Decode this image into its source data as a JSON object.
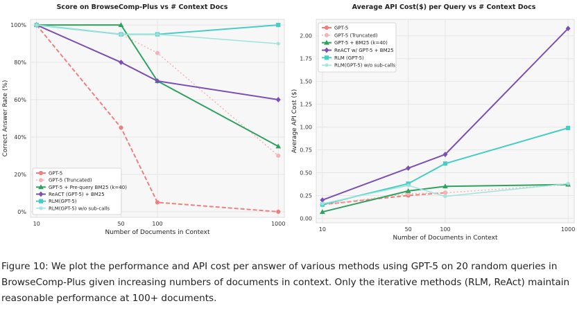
{
  "chart_data": [
    {
      "type": "line",
      "title": "Score on BrowseComp-Plus vs # Context Docs",
      "xlabel": "Number of Documents in Context",
      "ylabel": "Correct Answer Rate (%)",
      "x": [
        10,
        50,
        100,
        1000
      ],
      "xticks": [
        "10",
        "50",
        "100",
        "1000"
      ],
      "ylim": [
        -3,
        103
      ],
      "yticks": [
        0,
        20,
        40,
        60,
        80,
        100
      ],
      "ytick_labels": [
        "0%",
        "20%",
        "40%",
        "60%",
        "80%",
        "100%"
      ],
      "legend_position": "lower-left",
      "series": [
        {
          "name": "GPT-5",
          "values": [
            100,
            45,
            5,
            0
          ],
          "color": "#f08080",
          "dash": "dashed",
          "marker": "circle",
          "width": 2
        },
        {
          "name": "GPT-5 (Truncated)",
          "values": [
            100,
            95,
            85,
            30
          ],
          "color": "#f4b4b4",
          "dash": "dotted",
          "marker": "circle",
          "width": 1.5
        },
        {
          "name": "GPT-5 + Pre-query BM25 (k=40)",
          "values": [
            100,
            100,
            70,
            35
          ],
          "color": "#2ca25f",
          "dash": "solid",
          "marker": "triangle",
          "width": 2
        },
        {
          "name": "ReACT (GPT-5) + BM25",
          "values": [
            100,
            80,
            70,
            60
          ],
          "color": "#7b4fb3",
          "dash": "solid",
          "marker": "diamond",
          "width": 2
        },
        {
          "name": "RLM(GPT-5)",
          "values": [
            100,
            95,
            95,
            100
          ],
          "color": "#48cdc4",
          "dash": "solid",
          "marker": "square",
          "width": 2
        },
        {
          "name": "RLM(GPT-5) w/o sub-calls",
          "values": [
            100,
            95,
            95,
            90
          ],
          "color": "#9ee3dc",
          "dash": "solid",
          "marker": "cross",
          "width": 1.5
        }
      ]
    },
    {
      "type": "line",
      "title": "Average API Cost($) per Query vs # Context Docs",
      "xlabel": "Number of Documents in Context",
      "ylabel": "Average API Cost ($)",
      "x": [
        10,
        50,
        100,
        1000
      ],
      "xticks": [
        "10",
        "50",
        "100",
        "1000"
      ],
      "ylim": [
        -0.05,
        2.18
      ],
      "yticks": [
        0.0,
        0.25,
        0.5,
        0.75,
        1.0,
        1.25,
        1.5,
        1.75,
        2.0
      ],
      "ytick_labels": [
        "0.00",
        "0.25",
        "0.50",
        "0.75",
        "1.00",
        "1.25",
        "1.50",
        "1.75",
        "2.00"
      ],
      "legend_position": "top-left",
      "series": [
        {
          "name": "GPT-5",
          "values": [
            0.15,
            0.25,
            0.28,
            null
          ],
          "color": "#f08080",
          "dash": "dashed",
          "marker": "circle",
          "width": 2
        },
        {
          "name": "GPT-5 (Truncated)",
          "values": [
            0.15,
            0.27,
            0.28,
            0.37
          ],
          "color": "#f4b4b4",
          "dash": "dotted",
          "marker": "circle",
          "width": 1.5
        },
        {
          "name": "GPT-5 + BM25 (k=40)",
          "values": [
            0.07,
            0.3,
            0.35,
            0.37
          ],
          "color": "#2ca25f",
          "dash": "solid",
          "marker": "triangle",
          "width": 2
        },
        {
          "name": "ReACT w/ GPT-5 + BM25",
          "values": [
            0.2,
            0.55,
            0.7,
            2.08
          ],
          "color": "#7b4fb3",
          "dash": "solid",
          "marker": "diamond",
          "width": 2
        },
        {
          "name": "RLM (GPT-5)",
          "values": [
            0.15,
            0.38,
            0.6,
            0.99
          ],
          "color": "#48cdc4",
          "dash": "solid",
          "marker": "square",
          "width": 2
        },
        {
          "name": "RLM(GPT-5) w/o sub-calls",
          "values": [
            0.16,
            0.36,
            0.24,
            0.38
          ],
          "color": "#9ee3dc",
          "dash": "solid",
          "marker": "cross",
          "width": 1.5
        }
      ]
    }
  ],
  "caption": "Figure 10: We plot the performance and API cost per answer of various methods using GPT-5 on 20 random queries in BrowseComp-Plus given increasing numbers of documents in context. Only the iterative methods (RLM, ReAct) maintain reasonable performance at 100+ documents."
}
